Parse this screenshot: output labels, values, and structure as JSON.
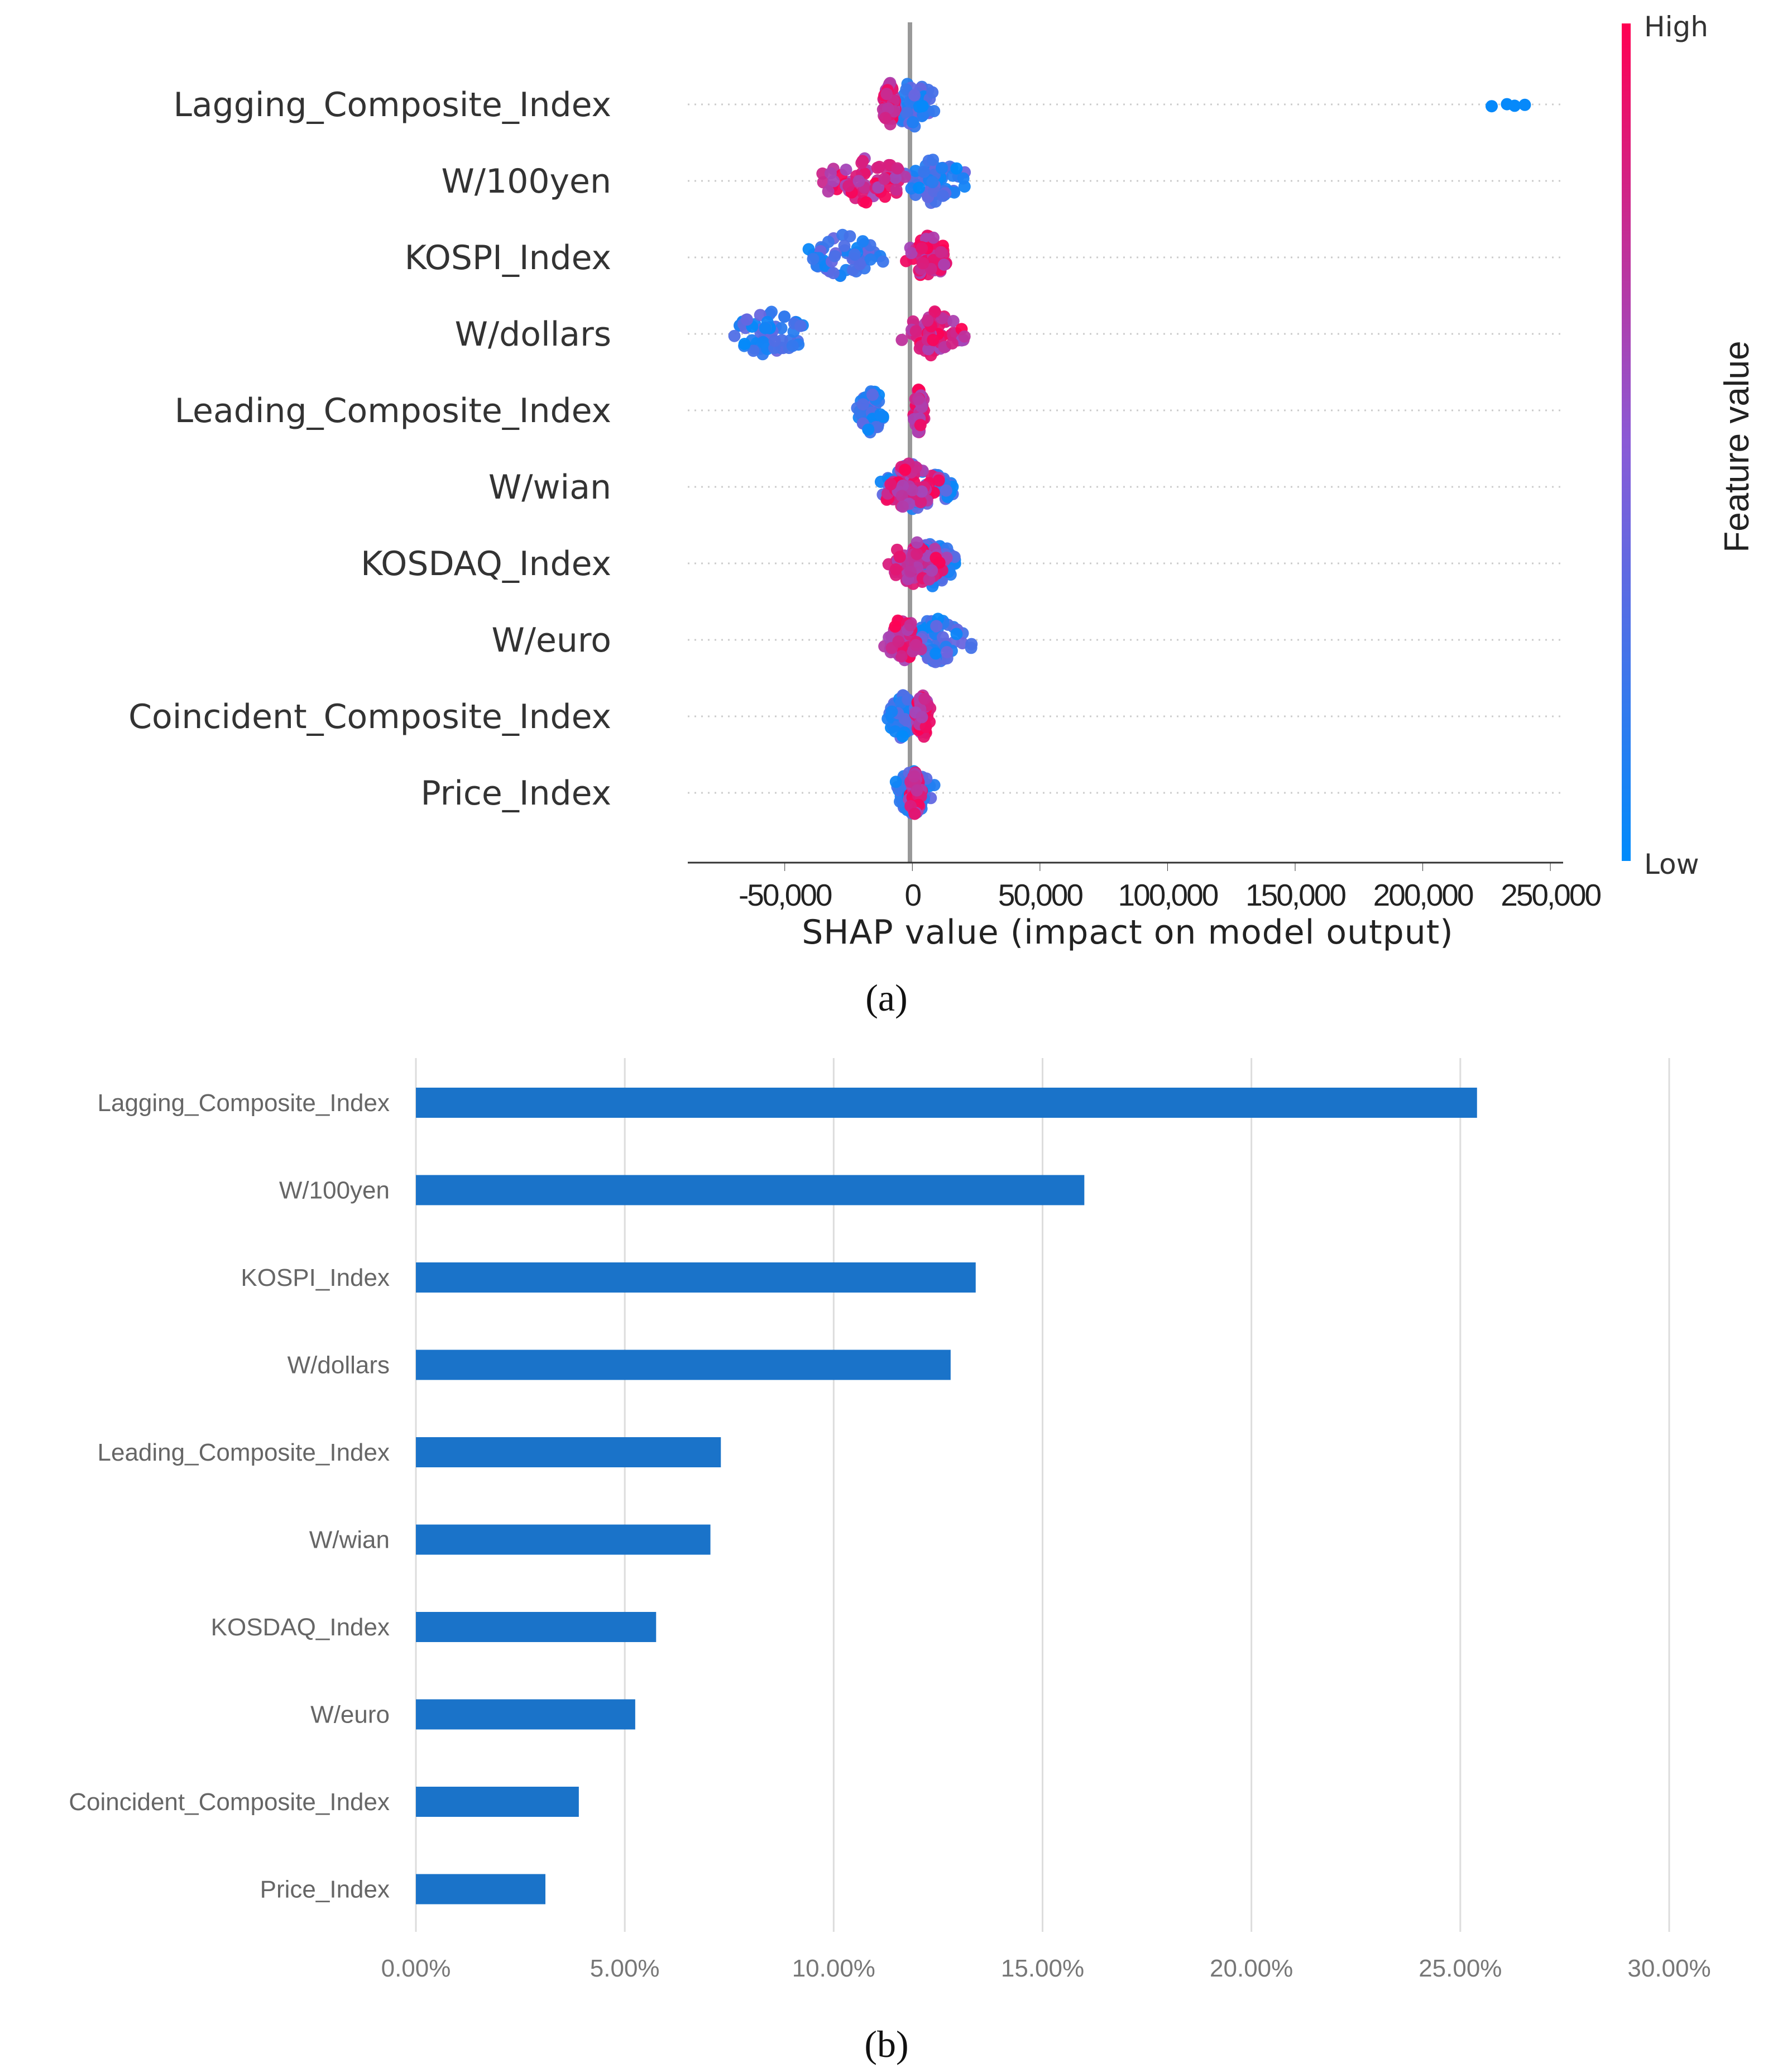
{
  "chart_data": [
    {
      "type": "scatter",
      "subtype": "shap-beeswarm",
      "panel_label": "(a)",
      "features": [
        {
          "name": "Lagging_Composite_Index",
          "low_min": -12000,
          "low_max": 12000,
          "high_min": -12000,
          "high_max": -6000,
          "outliers": [
            [
              4000,
              "low"
            ],
            [
              227000,
              "low"
            ],
            [
              233000,
              "low"
            ],
            [
              236000,
              "low"
            ],
            [
              240000,
              "low"
            ]
          ]
        },
        {
          "name": "W/100yen",
          "low_min": -5000,
          "low_max": 22000,
          "high_min": -38000,
          "high_max": 3000,
          "outliers": []
        },
        {
          "name": "KOSPI_Index",
          "low_min": -43000,
          "low_max": -10000,
          "high_min": -3000,
          "high_max": 16000,
          "outliers": []
        },
        {
          "name": "W/dollars",
          "low_min": -72000,
          "low_max": -40000,
          "high_min": -5000,
          "high_max": 22000,
          "outliers": []
        },
        {
          "name": "Leading_Composite_Index",
          "low_min": -22000,
          "low_max": -10000,
          "high_min": 0,
          "high_max": 5000,
          "outliers": []
        },
        {
          "name": "W/wian",
          "low_min": -20000,
          "low_max": 20000,
          "high_min": -15000,
          "high_max": 12000,
          "outliers": []
        },
        {
          "name": "KOSDAQ_Index",
          "low_min": -5000,
          "low_max": 20000,
          "high_min": -12000,
          "high_max": 15000,
          "outliers": []
        },
        {
          "name": "W/euro",
          "low_min": -5000,
          "low_max": 25000,
          "high_min": -12000,
          "high_max": 5000,
          "outliers": []
        },
        {
          "name": "Coincident_Composite_Index",
          "low_min": -10000,
          "low_max": 2000,
          "high_min": 0,
          "high_max": 8000,
          "outliers": []
        },
        {
          "name": "Price_Index",
          "low_min": -10000,
          "low_max": 10000,
          "high_min": -2000,
          "high_max": 4000,
          "outliers": []
        }
      ],
      "xlabel": "SHAP value (impact on model output)",
      "xticks": [
        -50000,
        0,
        50000,
        100000,
        150000,
        200000,
        250000
      ],
      "xtick_labels": [
        "-50,000",
        "0",
        "50,000",
        "100,000",
        "150,000",
        "200,000",
        "250,000"
      ],
      "xlim": [
        -88000,
        255000
      ],
      "colorbar": {
        "title": "Feature value",
        "high_label": "High",
        "low_label": "Low",
        "high_color": "#ff0052",
        "low_color": "#008bfb"
      }
    },
    {
      "type": "bar",
      "orientation": "horizontal",
      "panel_label": "(b)",
      "categories": [
        "Lagging_Composite_Index",
        "W/100yen",
        "KOSPI_Index",
        "W/dollars",
        "Leading_Composite_Index",
        "W/wian",
        "KOSDAQ_Index",
        "W/euro",
        "Coincident_Composite_Index",
        "Price_Index"
      ],
      "values": [
        25.4,
        16.0,
        13.4,
        12.8,
        7.3,
        7.05,
        5.75,
        5.25,
        3.9,
        3.1
      ],
      "unit": "%",
      "xticks": [
        0,
        5,
        10,
        15,
        20,
        25,
        30
      ],
      "xtick_labels": [
        "0.00%",
        "5.00%",
        "10.00%",
        "15.00%",
        "20.00%",
        "25.00%",
        "30.00%"
      ],
      "xlim": [
        0,
        30
      ],
      "bar_color": "#1a73c9"
    }
  ]
}
